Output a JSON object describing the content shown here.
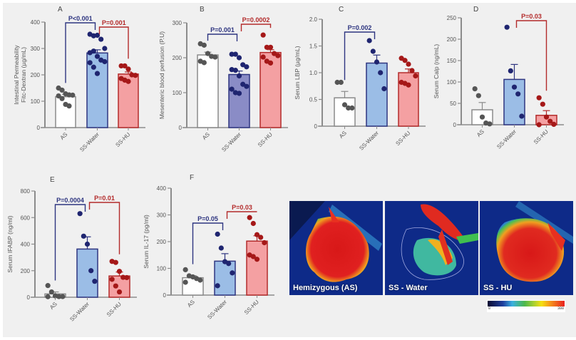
{
  "figure": {
    "colors": {
      "background": "#f0f0f0",
      "axis": "#8c8c8c",
      "text": "#555555",
      "as_bar": "#ffffff",
      "as_dot": "#555555",
      "ss_water_bar": "#9bbde6",
      "ss_water_bar_B": "#8a8cc6",
      "ss_water_edge": "#2e3580",
      "ss_water_dot": "#1f2570",
      "ss_hu_bar": "#f4a0a2",
      "ss_hu_edge": "#b32a2a",
      "ss_hu_dot": "#a51818",
      "sig_blue": "#2e3580",
      "sig_red": "#b32a2a"
    }
  },
  "chart_data": [
    {
      "id": "A",
      "type": "bar",
      "title": "A",
      "ylabel": "Intestinal Permeability\nFitc-Dextran (µg/mL)",
      "categories": [
        "AS",
        "SS-Water",
        "SS-HU"
      ],
      "means": [
        117,
        283,
        203
      ],
      "sem": [
        9,
        12,
        8
      ],
      "points": [
        [
          150,
          142,
          128,
          124,
          123,
          120,
          110,
          88,
          82
        ],
        [
          354,
          348,
          350,
          335,
          300,
          284,
          290,
          270,
          256,
          250,
          246,
          229,
          205
        ],
        [
          234,
          234,
          222,
          200,
          198,
          186,
          180,
          175
        ]
      ],
      "ylim": [
        0,
        400
      ],
      "yticks": [
        0,
        100,
        200,
        300,
        400
      ],
      "comparisons": [
        {
          "from": 0,
          "to": 1,
          "label": "P<0.001",
          "color": "blue"
        },
        {
          "from": 1,
          "to": 2,
          "label": "P=0.001",
          "color": "red"
        }
      ]
    },
    {
      "id": "B",
      "type": "bar",
      "title": "B",
      "ylabel": "Mesenteric blood perfusion (P.U)",
      "categories": [
        "AS",
        "SS-Water",
        "SS-HU"
      ],
      "means": [
        208,
        152,
        215
      ],
      "sem": [
        8,
        10,
        8
      ],
      "points": [
        [
          240,
          236,
          212,
          204,
          202,
          190,
          186
        ],
        [
          210,
          210,
          200,
          180,
          174,
          166,
          164,
          148,
          124,
          118,
          110,
          100,
          98
        ],
        [
          265,
          230,
          230,
          212,
          206,
          202,
          190,
          185
        ]
      ],
      "ylim": [
        0,
        300
      ],
      "yticks": [
        0,
        100,
        200,
        300
      ],
      "comparisons": [
        {
          "from": 0,
          "to": 1,
          "label": "P=0.001",
          "color": "blue"
        },
        {
          "from": 1,
          "to": 2,
          "label": "P=0.0002",
          "color": "red"
        }
      ]
    },
    {
      "id": "C",
      "type": "bar",
      "title": "C",
      "ylabel": "Serum LBP (µg/mL)",
      "categories": [
        "AS",
        "SS-Water",
        "SS-HU"
      ],
      "means": [
        0.53,
        1.18,
        1.0
      ],
      "sem": [
        0.12,
        0.15,
        0.07
      ],
      "points": [
        [
          0.82,
          0.82,
          0.4,
          0.34,
          0.34
        ],
        [
          1.6,
          1.4,
          1.2,
          1.0,
          0.7
        ],
        [
          1.27,
          1.23,
          1.16,
          1.04,
          0.94,
          0.82,
          0.8,
          0.77
        ]
      ],
      "ylim": [
        0,
        2.0
      ],
      "yticks": [
        0,
        0.5,
        1.0,
        1.5,
        2.0
      ],
      "ytick_labels": [
        "0",
        "0.5",
        "1.0",
        "1.5",
        "2.0"
      ],
      "comparisons": [
        {
          "from": 0,
          "to": 1,
          "label": "P=0.002",
          "color": "blue"
        }
      ]
    },
    {
      "id": "D",
      "type": "bar",
      "title": "D",
      "ylabel": "Serum Calp (ng/mL)",
      "categories": [
        "AS",
        "SS-Water",
        "SS-HU"
      ],
      "means": [
        35,
        106,
        22
      ],
      "sem": [
        17,
        35,
        11
      ],
      "points": [
        [
          84,
          68,
          18,
          4,
          2
        ],
        [
          228,
          126,
          88,
          72,
          20
        ],
        [
          63,
          48,
          18,
          8,
          1,
          0
        ]
      ],
      "ylim": [
        0,
        250
      ],
      "yticks": [
        0,
        50,
        100,
        150,
        200,
        250
      ],
      "comparisons": [
        {
          "from": 1,
          "to": 2,
          "label": "P=0.03",
          "color": "red"
        }
      ]
    },
    {
      "id": "E",
      "type": "bar",
      "title": "E",
      "ylabel": "Serum IFABP (ng/ml)",
      "categories": [
        "AS",
        "SS-Water",
        "SS-HU"
      ],
      "means": [
        25,
        363,
        160
      ],
      "sem": [
        15,
        92,
        30
      ],
      "points": [
        [
          88,
          40,
          10,
          5,
          5,
          4
        ],
        [
          630,
          460,
          400,
          200,
          120
        ],
        [
          270,
          262,
          195,
          150,
          148,
          135,
          85,
          40
        ]
      ],
      "ylim": [
        0,
        800
      ],
      "yticks": [
        0,
        200,
        400,
        600,
        800
      ],
      "comparisons": [
        {
          "from": 0,
          "to": 1,
          "label": "P=0.0004",
          "color": "blue"
        },
        {
          "from": 1,
          "to": 2,
          "label": "P=0.01",
          "color": "red"
        }
      ]
    },
    {
      "id": "F",
      "type": "bar",
      "title": "F",
      "ylabel": "Serum IL-17 (pg/ml)",
      "categories": [
        "AS",
        "SS-Water",
        "SS-HU"
      ],
      "means": [
        65,
        127,
        202
      ],
      "sem": [
        8,
        28,
        20
      ],
      "points": [
        [
          95,
          72,
          68,
          62,
          56,
          48
        ],
        [
          228,
          176,
          125,
          118,
          83,
          35
        ],
        [
          290,
          268,
          226,
          216,
          196,
          150,
          144,
          134
        ]
      ],
      "ylim": [
        0,
        400
      ],
      "yticks": [
        0,
        100,
        200,
        300,
        400
      ],
      "comparisons": [
        {
          "from": 0,
          "to": 1,
          "label": "P=0.05",
          "color": "blue"
        },
        {
          "from": 1,
          "to": 2,
          "label": "P=0.03",
          "color": "red"
        }
      ]
    }
  ],
  "images": [
    {
      "label": "Hemizygous (AS)",
      "perfusion": "high"
    },
    {
      "label": "SS - Water",
      "perfusion": "low"
    },
    {
      "label": "SS - HU",
      "perfusion": "high"
    }
  ],
  "colorbar": {
    "min_label": "0",
    "max_label": "300"
  }
}
